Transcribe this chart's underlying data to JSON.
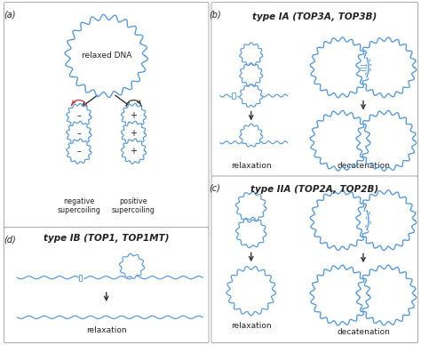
{
  "bg_color": "#ffffff",
  "dna_color": "#5b9bd5",
  "text_color": "#222222",
  "label_relaxed": "relaxed DNA",
  "label_neg": "negative\nsupercoiling",
  "label_pos": "positive\nsupercoiling",
  "label_relax": "relaxation",
  "label_decaten": "decatenation",
  "label_b": "type IA (TOP3A, TOP3B)",
  "label_c": "type IIA (TOP2A, TOP2B)",
  "label_d": "type IB (TOP1, TOP1MT)"
}
